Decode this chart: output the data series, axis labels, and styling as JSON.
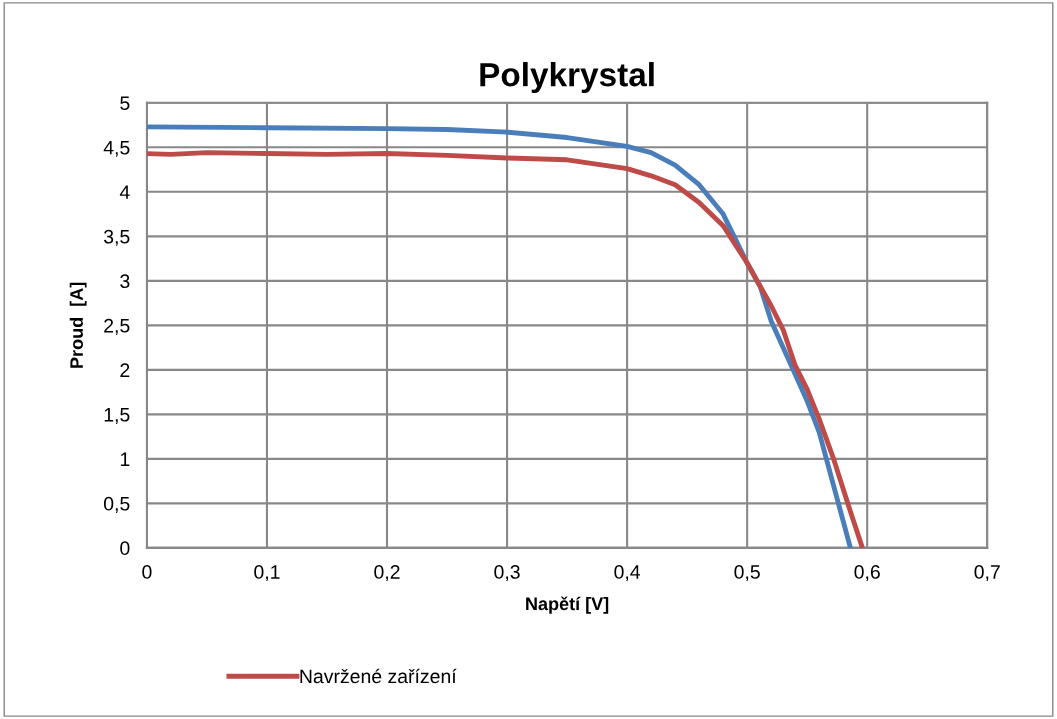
{
  "chart_data": {
    "type": "line",
    "title": "Polykrystal",
    "xlabel": "Napětí [V]",
    "ylabel": "Proud  [A]",
    "xlim": [
      0,
      0.7
    ],
    "xticks": [
      {
        "value": 0,
        "label": "0"
      },
      {
        "value": 0.1,
        "label": "0,1"
      },
      {
        "value": 0.2,
        "label": "0,2"
      },
      {
        "value": 0.3,
        "label": "0,3"
      },
      {
        "value": 0.4,
        "label": "0,4"
      },
      {
        "value": 0.5,
        "label": "0,5"
      },
      {
        "value": 0.6,
        "label": "0,6"
      },
      {
        "value": 0.7,
        "label": "0,7"
      }
    ],
    "ylim": [
      0,
      5
    ],
    "yticks": [
      {
        "value": 0,
        "label": "0"
      },
      {
        "value": 0.5,
        "label": "0,5"
      },
      {
        "value": 1,
        "label": "1"
      },
      {
        "value": 1.5,
        "label": "1,5"
      },
      {
        "value": 2,
        "label": "2"
      },
      {
        "value": 2.5,
        "label": "2,5"
      },
      {
        "value": 3,
        "label": "3"
      },
      {
        "value": 3.5,
        "label": "3,5"
      },
      {
        "value": 4,
        "label": "4"
      },
      {
        "value": 4.5,
        "label": "4,5"
      },
      {
        "value": 5,
        "label": "5"
      }
    ],
    "grid": true,
    "legend": "bottom",
    "marker": "none",
    "line_style": "solid",
    "series": [
      {
        "color": "#4a7ebb",
        "x": [
          0,
          0.1,
          0.2,
          0.25,
          0.3,
          0.35,
          0.38,
          0.4,
          0.42,
          0.44,
          0.46,
          0.48,
          0.5,
          0.511,
          0.52,
          0.54,
          0.55,
          0.56,
          0.567,
          0.575,
          0.58,
          0.586
        ],
        "values": [
          4.73,
          4.72,
          4.71,
          4.7,
          4.67,
          4.61,
          4.55,
          4.51,
          4.44,
          4.3,
          4.08,
          3.75,
          3.2,
          2.93,
          2.55,
          1.95,
          1.65,
          1.3,
          0.95,
          0.55,
          0.3,
          0
        ]
      },
      {
        "name": "Navržené zařízení",
        "color": "#be4b48",
        "x": [
          0,
          0.02,
          0.05,
          0.1,
          0.15,
          0.2,
          0.25,
          0.3,
          0.35,
          0.38,
          0.4,
          0.42,
          0.44,
          0.46,
          0.48,
          0.5,
          0.52,
          0.53,
          0.54,
          0.55,
          0.56,
          0.572,
          0.585,
          0.596
        ],
        "values": [
          4.43,
          4.42,
          4.44,
          4.43,
          4.42,
          4.43,
          4.41,
          4.38,
          4.36,
          4.3,
          4.26,
          4.18,
          4.08,
          3.88,
          3.62,
          3.2,
          2.72,
          2.45,
          2.05,
          1.78,
          1.45,
          1.0,
          0.45,
          0
        ]
      }
    ]
  }
}
